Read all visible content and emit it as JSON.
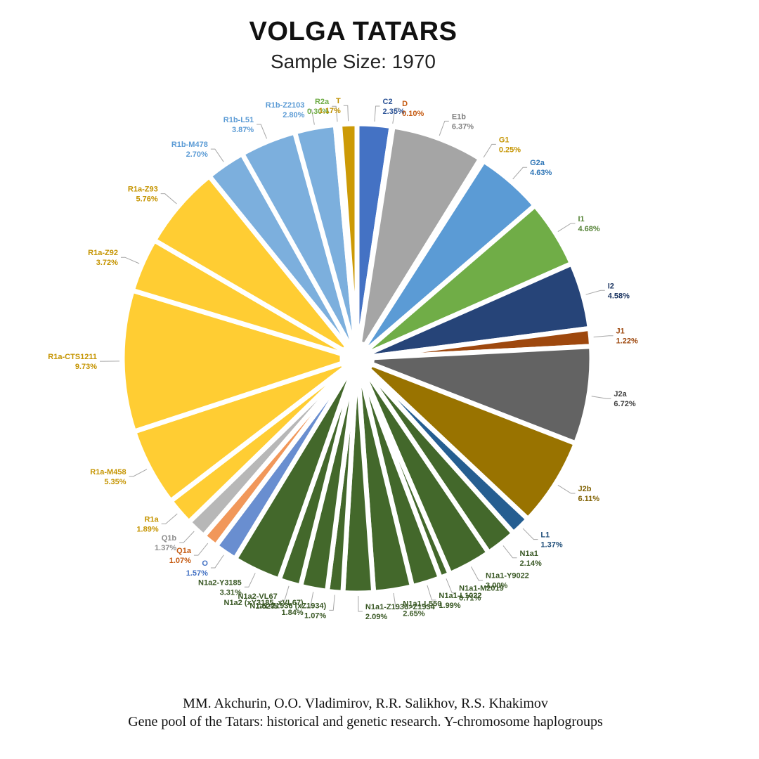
{
  "title": "VOLGA TATARS",
  "subtitle": "Sample Size: 1970",
  "citation": {
    "line1": "MM. Akchurin, O.O. Vladimirov, R.R. Salikhov, R.S. Khakimov",
    "line2": "Gene pool of the Tatars: historical and genetic research. Y-chromosome haplogroups"
  },
  "chart_data": {
    "type": "pie",
    "title": "VOLGA TATARS",
    "subtitle": "Sample Size: 1970",
    "start": "12 o'clock, clockwise",
    "legend": "none (callout labels)",
    "slices": [
      {
        "label": "C2",
        "value": 2.35,
        "text": "2.35%",
        "color": "#4472C4",
        "label_color": "#2E5597"
      },
      {
        "label": "D",
        "value": 0.1,
        "text": "0.10%",
        "color": "#ED7D31",
        "label_color": "#C55A11"
      },
      {
        "label": "E1b",
        "value": 6.37,
        "text": "6.37%",
        "color": "#A5A5A5",
        "label_color": "#7F7F7F"
      },
      {
        "label": "G1",
        "value": 0.25,
        "text": "0.25%",
        "color": "#FFC000",
        "label_color": "#C59400"
      },
      {
        "label": "G2a",
        "value": 4.63,
        "text": "4.63%",
        "color": "#5B9BD5",
        "label_color": "#2E75B6"
      },
      {
        "label": "I1",
        "value": 4.68,
        "text": "4.68%",
        "color": "#70AD47",
        "label_color": "#548235"
      },
      {
        "label": "I2",
        "value": 4.58,
        "text": "4.58%",
        "color": "#264478",
        "label_color": "#1F3864"
      },
      {
        "label": "J1",
        "value": 1.22,
        "text": "1.22%",
        "color": "#9E480E",
        "label_color": "#9E480E"
      },
      {
        "label": "J2a",
        "value": 6.72,
        "text": "6.72%",
        "color": "#636363",
        "label_color": "#404040"
      },
      {
        "label": "J2b",
        "value": 6.11,
        "text": "6.11%",
        "color": "#997300",
        "label_color": "#7F6000"
      },
      {
        "label": "L1",
        "value": 1.37,
        "text": "1.37%",
        "color": "#255E91",
        "label_color": "#1F4E79"
      },
      {
        "label": "N1a1",
        "value": 2.14,
        "text": "2.14%",
        "color": "#43682B",
        "label_color": "#385723"
      },
      {
        "label": "N1a1-Y9022",
        "value": 3.0,
        "text": "3.00%",
        "color": "#43682B",
        "label_color": "#385723"
      },
      {
        "label": "N1a1-M2019",
        "value": 0.71,
        "text": "0.71%",
        "color": "#43682B",
        "label_color": "#385723"
      },
      {
        "label": "N1a1-L1022",
        "value": 1.99,
        "text": "1.99%",
        "color": "#43682B",
        "label_color": "#385723"
      },
      {
        "label": "N1a1-L550",
        "value": 2.65,
        "text": "2.65%",
        "color": "#43682B",
        "label_color": "#385723"
      },
      {
        "label": "N1a1-Z1936>Z1934",
        "value": 2.09,
        "text": "2.09%",
        "color": "#43682B",
        "label_color": "#385723"
      },
      {
        "label": "N1a1-Z1936 (xZ1934)",
        "value": 1.07,
        "text": "1.07%",
        "color": "#43682B",
        "label_color": "#385723"
      },
      {
        "label": "N1a2 (xY3185. xVL67)",
        "value": 1.84,
        "text": "1.84%",
        "color": "#43682B",
        "label_color": "#385723"
      },
      {
        "label": "N1a2-VL67",
        "value": 1.52,
        "text": "1.52%",
        "color": "#43682B",
        "label_color": "#385723"
      },
      {
        "label": "N1a2-Y3185",
        "value": 3.31,
        "text": "3.31%",
        "color": "#43682B",
        "label_color": "#385723"
      },
      {
        "label": "O",
        "value": 1.57,
        "text": "1.57%",
        "color": "#698ED0",
        "label_color": "#4472C4"
      },
      {
        "label": "Q1a",
        "value": 1.07,
        "text": "1.07%",
        "color": "#F1975A",
        "label_color": "#C55A11"
      },
      {
        "label": "Q1b",
        "value": 1.37,
        "text": "1.37%",
        "color": "#B7B7B7",
        "label_color": "#8C8C8C"
      },
      {
        "label": "R1a",
        "value": 1.89,
        "text": "1.89%",
        "color": "#FFCD33",
        "label_color": "#C59400"
      },
      {
        "label": "R1a-M458",
        "value": 5.35,
        "text": "5.35%",
        "color": "#FFCD33",
        "label_color": "#C59400"
      },
      {
        "label": "R1a-CTS1211",
        "value": 9.73,
        "text": "9.73%",
        "color": "#FFCD33",
        "label_color": "#C59400"
      },
      {
        "label": "R1a-Z92",
        "value": 3.72,
        "text": "3.72%",
        "color": "#FFCD33",
        "label_color": "#C59400"
      },
      {
        "label": "R1a-Z93",
        "value": 5.76,
        "text": "5.76%",
        "color": "#FFCD33",
        "label_color": "#C59400"
      },
      {
        "label": "R1b-M478",
        "value": 2.7,
        "text": "2.70%",
        "color": "#7CAFDD",
        "label_color": "#5B9BD5"
      },
      {
        "label": "R1b-L51",
        "value": 3.87,
        "text": "3.87%",
        "color": "#7CAFDD",
        "label_color": "#5B9BD5"
      },
      {
        "label": "R1b-Z2103",
        "value": 2.8,
        "text": "2.80%",
        "color": "#7CAFDD",
        "label_color": "#5B9BD5"
      },
      {
        "label": "R2a",
        "value": 0.3,
        "text": "0.30%",
        "color": "#8CC168",
        "label_color": "#70AD47"
      },
      {
        "label": "T",
        "value": 1.17,
        "text": "1.17%",
        "color": "#CC9A06",
        "label_color": "#BF9000"
      }
    ]
  }
}
